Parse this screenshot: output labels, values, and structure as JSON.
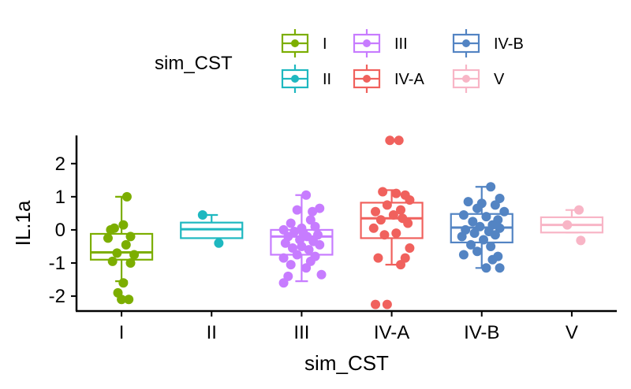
{
  "chart_data": {
    "type": "box",
    "xlabel": "sim_CST",
    "ylabel": "IL.1a",
    "legend": {
      "title": "sim_CST",
      "position": "top"
    },
    "categories": [
      "I",
      "II",
      "III",
      "IV-A",
      "IV-B",
      "V"
    ],
    "colors": [
      "#7CAE00",
      "#1EB8C0",
      "#C77CFF",
      "#F0615D",
      "#5384C3",
      "#F8B5C6"
    ],
    "ylim": [
      -2.45,
      2.85
    ],
    "yticks": [
      -2,
      -1,
      0,
      1,
      2
    ],
    "ytick_labels": [
      "-2",
      "-1",
      "0",
      "1",
      "2"
    ],
    "grid": false,
    "boxes": [
      {
        "min": -1.55,
        "q1": -0.9,
        "median": -0.68,
        "q3": -0.12,
        "max": 1.0
      },
      {
        "min": -0.25,
        "q1": -0.25,
        "median": 0.02,
        "q3": 0.22,
        "max": 0.45
      },
      {
        "min": -1.55,
        "q1": -0.75,
        "median": -0.2,
        "q3": 0.0,
        "max": 1.05
      },
      {
        "min": -1.05,
        "q1": -0.25,
        "median": 0.35,
        "q3": 0.82,
        "max": 1.2
      },
      {
        "min": -1.15,
        "q1": -0.38,
        "median": 0.07,
        "q3": 0.48,
        "max": 1.3
      },
      {
        "min": -0.08,
        "q1": -0.08,
        "median": 0.15,
        "q3": 0.38,
        "max": 0.6
      }
    ],
    "points": [
      [
        [
          0.06,
          1.0
        ],
        [
          -0.12,
          0.0
        ],
        [
          0.02,
          0.15
        ],
        [
          -0.08,
          0.05
        ],
        [
          0.1,
          -0.2
        ],
        [
          -0.15,
          -0.25
        ],
        [
          0.05,
          -0.45
        ],
        [
          -0.05,
          -0.7
        ],
        [
          0.14,
          -0.75
        ],
        [
          -0.1,
          -0.95
        ],
        [
          0.1,
          -1.0
        ],
        [
          0.02,
          -1.6
        ],
        [
          -0.04,
          -1.9
        ],
        [
          0.0,
          -2.1
        ],
        [
          0.08,
          -2.1
        ]
      ],
      [
        [
          -0.1,
          0.45
        ],
        [
          0.08,
          -0.4
        ]
      ],
      [
        [
          0.05,
          1.05
        ],
        [
          0.2,
          0.65
        ],
        [
          0.12,
          0.55
        ],
        [
          -0.05,
          0.6
        ],
        [
          -0.12,
          0.2
        ],
        [
          0.1,
          0.3
        ],
        [
          0.0,
          0.05
        ],
        [
          -0.2,
          0.0
        ],
        [
          0.15,
          0.1
        ],
        [
          -0.08,
          -0.05
        ],
        [
          0.02,
          -0.1
        ],
        [
          0.18,
          -0.15
        ],
        [
          -0.15,
          -0.2
        ],
        [
          0.06,
          -0.2
        ],
        [
          -0.02,
          -0.3
        ],
        [
          0.13,
          -0.35
        ],
        [
          -0.18,
          -0.4
        ],
        [
          0.2,
          -0.45
        ],
        [
          0.0,
          -0.5
        ],
        [
          -0.1,
          -0.55
        ],
        [
          0.08,
          -0.6
        ],
        [
          -0.05,
          -0.75
        ],
        [
          0.15,
          -0.8
        ],
        [
          -0.2,
          -0.85
        ],
        [
          0.1,
          -0.95
        ],
        [
          -0.12,
          -1.05
        ],
        [
          0.05,
          -1.15
        ],
        [
          0.22,
          -1.35
        ],
        [
          -0.15,
          -1.4
        ],
        [
          -0.2,
          -1.6
        ]
      ],
      [
        [
          -0.02,
          2.7
        ],
        [
          0.08,
          2.7
        ],
        [
          0.05,
          1.1
        ],
        [
          0.15,
          1.05
        ],
        [
          -0.1,
          1.15
        ],
        [
          0.2,
          0.9
        ],
        [
          -0.05,
          0.75
        ],
        [
          0.1,
          0.6
        ],
        [
          -0.18,
          0.55
        ],
        [
          0.02,
          0.45
        ],
        [
          0.12,
          0.35
        ],
        [
          -0.12,
          0.3
        ],
        [
          0.18,
          0.2
        ],
        [
          -0.2,
          0.05
        ],
        [
          0.05,
          -0.1
        ],
        [
          -0.08,
          -0.15
        ],
        [
          0.2,
          -0.55
        ],
        [
          0.15,
          -0.85
        ],
        [
          -0.15,
          -0.85
        ],
        [
          0.1,
          -1.05
        ],
        [
          -0.05,
          -2.25
        ],
        [
          -0.18,
          -2.25
        ]
      ],
      [
        [
          0.1,
          1.3
        ],
        [
          0.2,
          0.95
        ],
        [
          -0.15,
          0.85
        ],
        [
          0.0,
          0.8
        ],
        [
          0.15,
          0.75
        ],
        [
          -0.05,
          0.65
        ],
        [
          0.25,
          0.55
        ],
        [
          -0.2,
          0.45
        ],
        [
          0.05,
          0.4
        ],
        [
          0.18,
          0.3
        ],
        [
          -0.1,
          0.25
        ],
        [
          0.12,
          0.15
        ],
        [
          -0.02,
          0.1
        ],
        [
          0.2,
          0.05
        ],
        [
          -0.18,
          0.0
        ],
        [
          0.08,
          -0.05
        ],
        [
          -0.08,
          -0.1
        ],
        [
          0.15,
          -0.15
        ],
        [
          -0.22,
          -0.2
        ],
        [
          0.02,
          -0.3
        ],
        [
          -0.12,
          -0.45
        ],
        [
          0.1,
          -0.5
        ],
        [
          -0.05,
          -0.65
        ],
        [
          0.18,
          -0.8
        ],
        [
          -0.2,
          -0.75
        ],
        [
          0.12,
          -0.9
        ],
        [
          0.05,
          -1.15
        ],
        [
          0.2,
          -1.15
        ]
      ],
      [
        [
          0.08,
          0.6
        ],
        [
          -0.05,
          0.15
        ],
        [
          0.1,
          -0.32
        ]
      ]
    ]
  }
}
